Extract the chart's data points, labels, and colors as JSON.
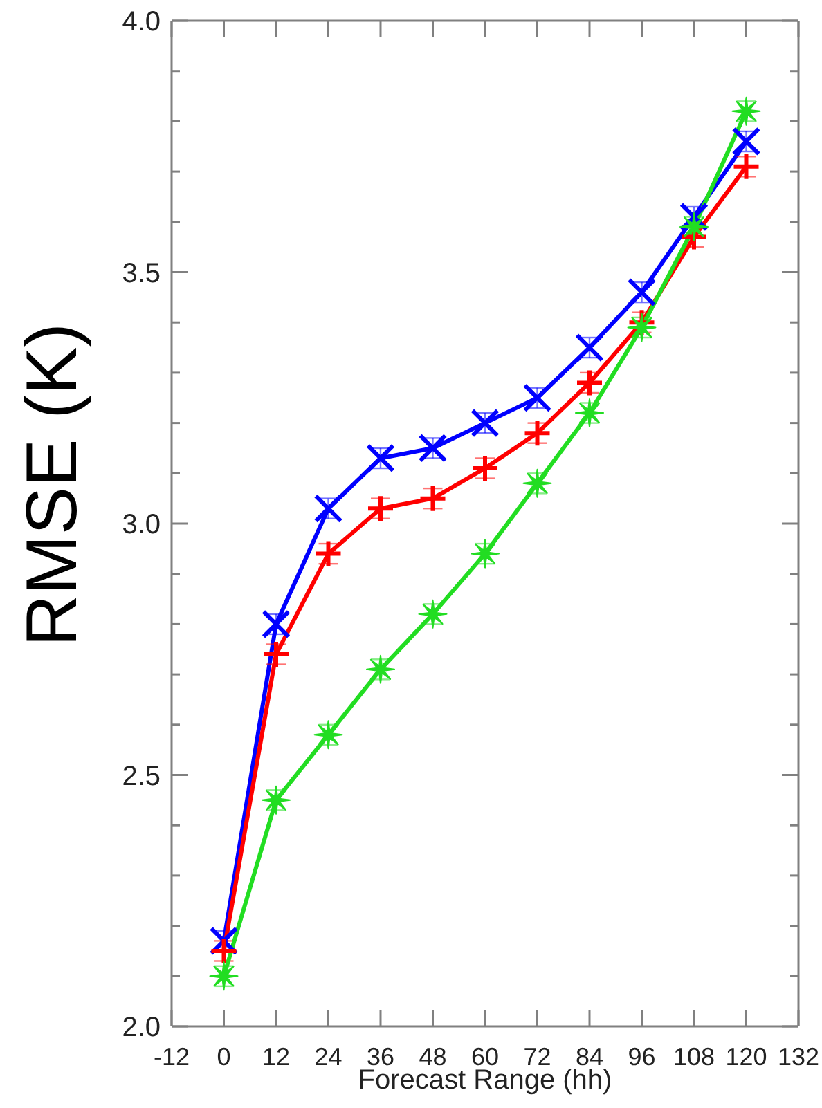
{
  "chart_data": {
    "type": "line",
    "xlabel": "Forecast Range (hh)",
    "ylabel": "RMSE (K)",
    "x": [
      0,
      12,
      24,
      36,
      48,
      60,
      72,
      84,
      96,
      108,
      120
    ],
    "series": [
      {
        "color": "#0000ff",
        "marker": "cross",
        "values": [
          2.17,
          2.8,
          3.03,
          3.13,
          3.15,
          3.2,
          3.25,
          3.35,
          3.46,
          3.61,
          3.76
        ],
        "errors": [
          0.02,
          0.02,
          0.02,
          0.02,
          0.02,
          0.02,
          0.02,
          0.02,
          0.02,
          0.02,
          0.02
        ]
      },
      {
        "color": "#ff0000",
        "marker": "plus",
        "values": [
          2.15,
          2.74,
          2.94,
          3.03,
          3.05,
          3.11,
          3.18,
          3.28,
          3.4,
          3.57,
          3.71
        ],
        "errors": [
          0.02,
          0.02,
          0.02,
          0.02,
          0.02,
          0.02,
          0.02,
          0.02,
          0.02,
          0.02,
          0.02
        ]
      },
      {
        "color": "#22dd22",
        "marker": "star",
        "values": [
          2.1,
          2.45,
          2.58,
          2.71,
          2.82,
          2.94,
          3.08,
          3.22,
          3.39,
          3.59,
          3.82
        ],
        "errors": [
          0.02,
          0.02,
          0.02,
          0.02,
          0.02,
          0.02,
          0.02,
          0.02,
          0.02,
          0.02,
          0.02
        ]
      }
    ],
    "xlim": [
      -12,
      132
    ],
    "xticks": [
      -12,
      0,
      12,
      24,
      36,
      48,
      60,
      72,
      84,
      96,
      108,
      120,
      132
    ],
    "ylim": [
      2,
      4
    ],
    "yticks": [
      {
        "value": 2,
        "label": "2.0"
      },
      {
        "value": 2.1,
        "label": null
      },
      {
        "value": 2.2,
        "label": null
      },
      {
        "value": 2.3,
        "label": null
      },
      {
        "value": 2.4,
        "label": null
      },
      {
        "value": 2.5,
        "label": "2.5"
      },
      {
        "value": 2.6,
        "label": null
      },
      {
        "value": 2.7,
        "label": null
      },
      {
        "value": 2.8,
        "label": null
      },
      {
        "value": 2.9,
        "label": null
      },
      {
        "value": 3,
        "label": "3.0"
      },
      {
        "value": 3.1,
        "label": null
      },
      {
        "value": 3.2,
        "label": null
      },
      {
        "value": 3.3,
        "label": null
      },
      {
        "value": 3.4,
        "label": null
      },
      {
        "value": 3.5,
        "label": "3.5"
      },
      {
        "value": 3.6,
        "label": null
      },
      {
        "value": 3.7,
        "label": null
      },
      {
        "value": 3.8,
        "label": null
      },
      {
        "value": 3.9,
        "label": null
      },
      {
        "value": 4,
        "label": "4.0"
      }
    ],
    "line_style": "solid"
  }
}
